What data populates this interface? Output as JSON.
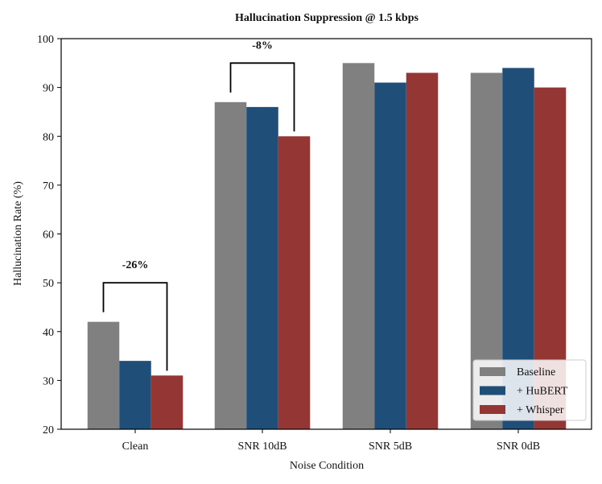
{
  "chart_data": {
    "type": "bar",
    "title": "Hallucination Suppression @ 1.5 kbps",
    "xlabel": "Noise Condition",
    "ylabel": "Hallucination Rate (%)",
    "ylim": [
      20,
      100
    ],
    "yticks": [
      "20",
      "30",
      "40",
      "50",
      "60",
      "70",
      "80",
      "90",
      "100"
    ],
    "categories": [
      "Clean",
      "SNR 10dB",
      "SNR 5dB",
      "SNR 0dB"
    ],
    "series": [
      {
        "name": "Baseline",
        "color": "#808080",
        "values": [
          42,
          87,
          95,
          93
        ]
      },
      {
        "name": "+ HuBERT",
        "color": "#1f4e79",
        "values": [
          34,
          86,
          91,
          94
        ]
      },
      {
        "name": "+ Whisper",
        "color": "#943634",
        "values": [
          31,
          80,
          93,
          90
        ]
      }
    ],
    "annotations": [
      {
        "text": "-26%",
        "category_index": 0,
        "from_series": 0,
        "to_series": 2
      },
      {
        "text": "-8%",
        "category_index": 1,
        "from_series": 0,
        "to_series": 2
      }
    ],
    "legend_position": "bottom-right",
    "grid": false
  }
}
